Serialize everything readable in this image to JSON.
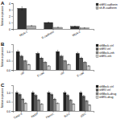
{
  "chart_data": [
    {
      "type": "bar",
      "title": "A",
      "categories": [
        "MDA-1",
        "E-cadherin",
        "MDA-2"
      ],
      "series": [
        {
          "name": "shEV-cadherin",
          "color": "#333333",
          "values": [
            3.2,
            1.0,
            0.4
          ],
          "errors": [
            0.224,
            0.07,
            0.028
          ]
        },
        {
          "name": "sh-E-cadherin",
          "color": "#aaaaaa",
          "values": [
            0.5,
            0.25,
            0.15
          ],
          "errors": [
            0.035,
            0.0175,
            0.0105
          ]
        }
      ],
      "ylabel": "Relative expression",
      "ylim": [
        0,
        4.0
      ],
      "yticks": [
        0,
        1,
        2,
        3,
        4
      ],
      "legend": "upper right"
    },
    {
      "type": "bar",
      "title": "B",
      "categories": [
        "ctrl",
        "E-cad",
        "ctrl",
        "E-cad"
      ],
      "series": [
        {
          "name": "shMock ctrl",
          "color": "#222222",
          "values": [
            1.0,
            0.9,
            1.0,
            0.9
          ],
          "errors": [
            0.07,
            0.063,
            0.07,
            0.063
          ]
        },
        {
          "name": "shEV ctrl",
          "color": "#555555",
          "values": [
            0.75,
            0.65,
            0.75,
            0.65
          ],
          "errors": [
            0.0525,
            0.0455,
            0.0525,
            0.0455
          ]
        },
        {
          "name": "shMock+inh",
          "color": "#888888",
          "values": [
            0.5,
            0.42,
            0.5,
            0.42
          ],
          "errors": [
            0.035,
            0.0294,
            0.035,
            0.0294
          ]
        },
        {
          "name": "shEV+inh",
          "color": "#cccccc",
          "values": [
            0.3,
            0.22,
            0.3,
            0.22
          ],
          "errors": [
            0.021,
            0.0154,
            0.021,
            0.0154
          ]
        }
      ],
      "ylabel": "Relative expression",
      "ylim": [
        0,
        1.4
      ],
      "yticks": [
        {
          "value": 0,
          "label": "0.0"
        },
        0.5,
        {
          "value": 1,
          "label": "1.0"
        }
      ],
      "legend": "upper right"
    },
    {
      "type": "bar",
      "title": "C",
      "categories": [
        "Casp-3",
        "PARP",
        "Fibron.",
        "Bcl-2",
        "pSrc"
      ],
      "series": [
        {
          "name": "shMock ctrl",
          "color": "#222222",
          "values": [
            1.0,
            1.0,
            1.0,
            1.0,
            1.0
          ],
          "errors": [
            0.07,
            0.07,
            0.07,
            0.07,
            0.07
          ]
        },
        {
          "name": "shEV ctrl",
          "color": "#555555",
          "values": [
            0.9,
            0.85,
            0.9,
            0.85,
            0.8
          ],
          "errors": [
            0.063,
            0.0595,
            0.063,
            0.0595,
            0.056
          ]
        },
        {
          "name": "shMock+drug",
          "color": "#888888",
          "values": [
            0.65,
            0.6,
            0.65,
            0.6,
            0.55
          ],
          "errors": [
            0.0455,
            0.042,
            0.0455,
            0.042,
            0.0385
          ]
        },
        {
          "name": "shEV+drug",
          "color": "#cccccc",
          "values": [
            0.42,
            0.38,
            0.42,
            0.38,
            0.32
          ],
          "errors": [
            0.0294,
            0.0266,
            0.0294,
            0.0266,
            0.0224
          ]
        }
      ],
      "ylabel": "Relative expression",
      "ylim": [
        0,
        1.4
      ],
      "yticks": [
        {
          "value": 0,
          "label": "0.0"
        },
        0.5,
        {
          "value": 1,
          "label": "1.0"
        }
      ],
      "legend": "upper right"
    }
  ]
}
